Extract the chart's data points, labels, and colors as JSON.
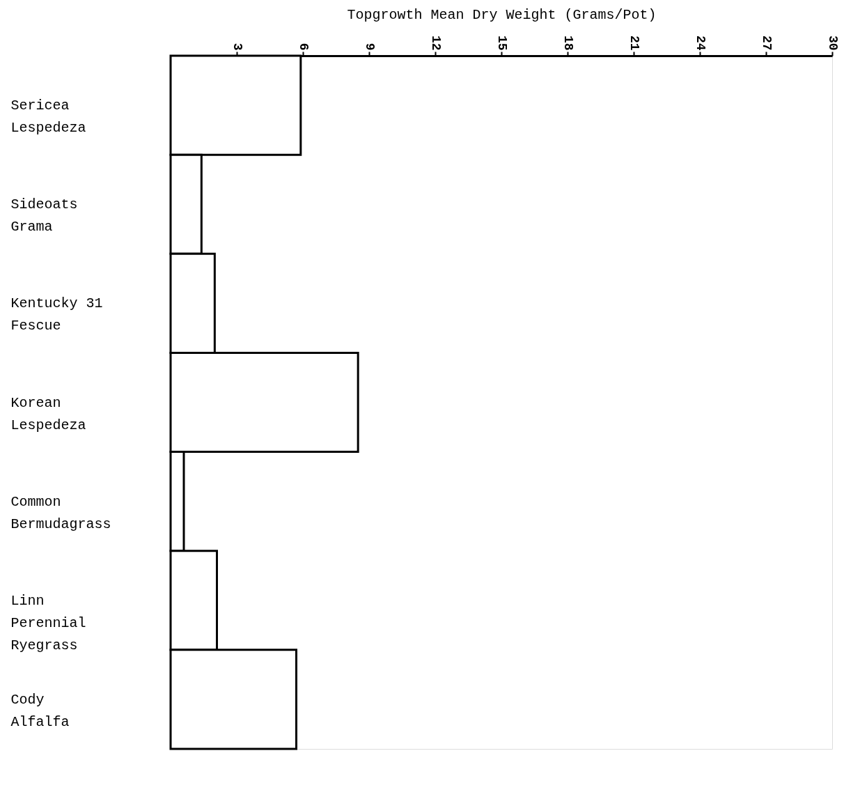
{
  "chart_data": {
    "type": "bar",
    "orientation": "horizontal",
    "xlabel": "Topgrowth Mean Dry Weight (Grams/Pot)",
    "categories": [
      "Sericea\nLespedeza",
      "Sideoats\nGrama",
      "Kentucky 31\nFescue",
      "Korean\nLespedeza",
      "Common\nBermudagrass",
      "Linn\nPerennial\nRyegrass",
      "Cody\nAlfalfa"
    ],
    "values": [
      5.9,
      1.4,
      2.0,
      8.5,
      0.6,
      2.1,
      5.7
    ],
    "color": "#ffffff",
    "xlim": [
      0,
      30
    ],
    "xticks": [
      3,
      6,
      9,
      12,
      15,
      18,
      21,
      24,
      27,
      30
    ],
    "grid": false
  }
}
